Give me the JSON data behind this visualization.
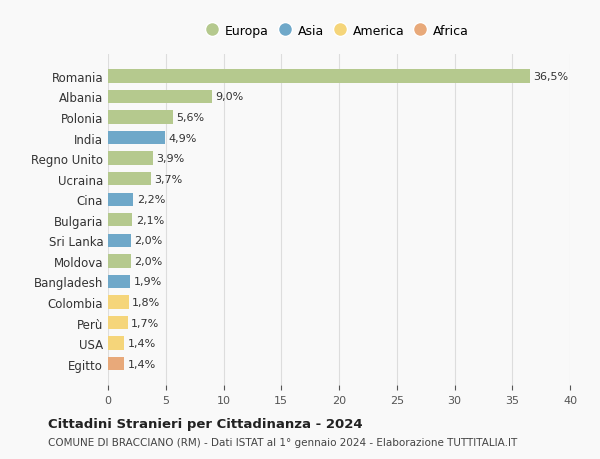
{
  "categories": [
    "Romania",
    "Albania",
    "Polonia",
    "India",
    "Regno Unito",
    "Ucraina",
    "Cina",
    "Bulgaria",
    "Sri Lanka",
    "Moldova",
    "Bangladesh",
    "Colombia",
    "Perù",
    "USA",
    "Egitto"
  ],
  "values": [
    36.5,
    9.0,
    5.6,
    4.9,
    3.9,
    3.7,
    2.2,
    2.1,
    2.0,
    2.0,
    1.9,
    1.8,
    1.7,
    1.4,
    1.4
  ],
  "labels": [
    "36,5%",
    "9,0%",
    "5,6%",
    "4,9%",
    "3,9%",
    "3,7%",
    "2,2%",
    "2,1%",
    "2,0%",
    "2,0%",
    "1,9%",
    "1,8%",
    "1,7%",
    "1,4%",
    "1,4%"
  ],
  "continents": [
    "Europa",
    "Europa",
    "Europa",
    "Asia",
    "Europa",
    "Europa",
    "Asia",
    "Europa",
    "Asia",
    "Europa",
    "Asia",
    "America",
    "America",
    "America",
    "Africa"
  ],
  "continent_colors": {
    "Europa": "#b5c98e",
    "Asia": "#6fa8c9",
    "America": "#f5d57a",
    "Africa": "#e8a97a"
  },
  "legend_order": [
    "Europa",
    "Asia",
    "America",
    "Africa"
  ],
  "title": "Cittadini Stranieri per Cittadinanza - 2024",
  "subtitle": "COMUNE DI BRACCIANO (RM) - Dati ISTAT al 1° gennaio 2024 - Elaborazione TUTTITALIA.IT",
  "xlim": [
    0,
    40
  ],
  "xticks": [
    0,
    5,
    10,
    15,
    20,
    25,
    30,
    35,
    40
  ],
  "background_color": "#f9f9f9",
  "grid_color": "#dddddd",
  "bar_height": 0.65
}
